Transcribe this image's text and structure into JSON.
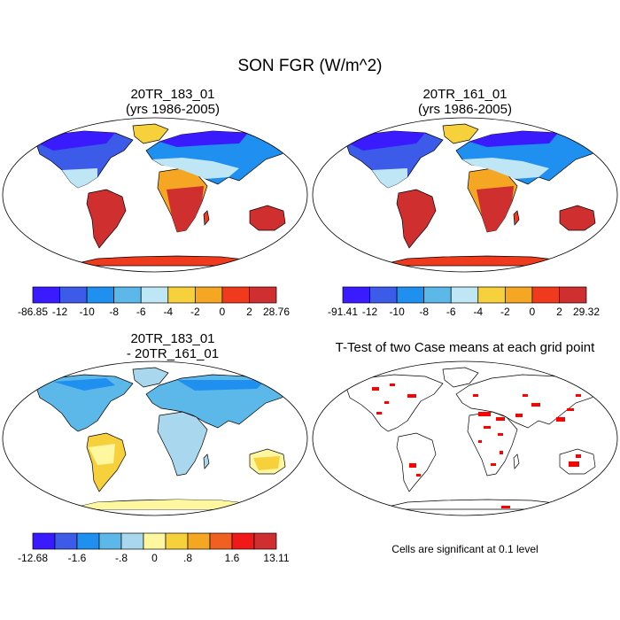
{
  "figure_title": "SON FGR (W/m^2)",
  "colors": {
    "palette_a": [
      "#3a1aff",
      "#3b5be8",
      "#1f8ff0",
      "#5bb8e8",
      "#bfe6f4",
      "#f7d13c",
      "#f5a623",
      "#f03a1e",
      "#cf2f2f"
    ],
    "palette_diff": [
      "#3a1aff",
      "#3b5be8",
      "#1f8ff0",
      "#5bb8e8",
      "#a9d8ee",
      "#fff7a0",
      "#f7d13c",
      "#f5a623",
      "#f06020",
      "#f01818",
      "#cf2f2f"
    ],
    "land_outline": "#000000",
    "ttest_cells": "#ff0000"
  },
  "chart_data": [
    {
      "type": "heatmap",
      "id": "case1",
      "title_line1": "20TR_183_01",
      "title_line2": "(yrs 1986-2005)",
      "colorbar_labels": [
        "-86.85",
        "-12",
        "-10",
        "-8",
        "-6",
        "-4",
        "-2",
        "0",
        "2",
        "28.76"
      ],
      "colorbar_levels": 9,
      "value_range": [
        -86.85,
        28.76
      ]
    },
    {
      "type": "heatmap",
      "id": "case2",
      "title_line1": "20TR_161_01",
      "title_line2": "(yrs 1986-2005)",
      "colorbar_labels": [
        "-91.41",
        "-12",
        "-10",
        "-8",
        "-6",
        "-4",
        "-2",
        "0",
        "2",
        "29.32"
      ],
      "colorbar_levels": 9,
      "value_range": [
        -91.41,
        29.32
      ]
    },
    {
      "type": "heatmap",
      "id": "difference",
      "title_line1": "20TR_183_01",
      "title_line2": "- 20TR_161_01",
      "colorbar_labels": [
        "-12.68",
        "-1.6",
        "-.8",
        "0",
        ".8",
        "1.6",
        "13.11"
      ],
      "colorbar_levels": 11,
      "value_range": [
        -12.68,
        13.11
      ]
    },
    {
      "type": "heatmap",
      "id": "ttest",
      "title_line1": "T-Test of two Case means at each grid point",
      "title_line2": "",
      "note": "Cells are significant at 0.1 level"
    }
  ]
}
